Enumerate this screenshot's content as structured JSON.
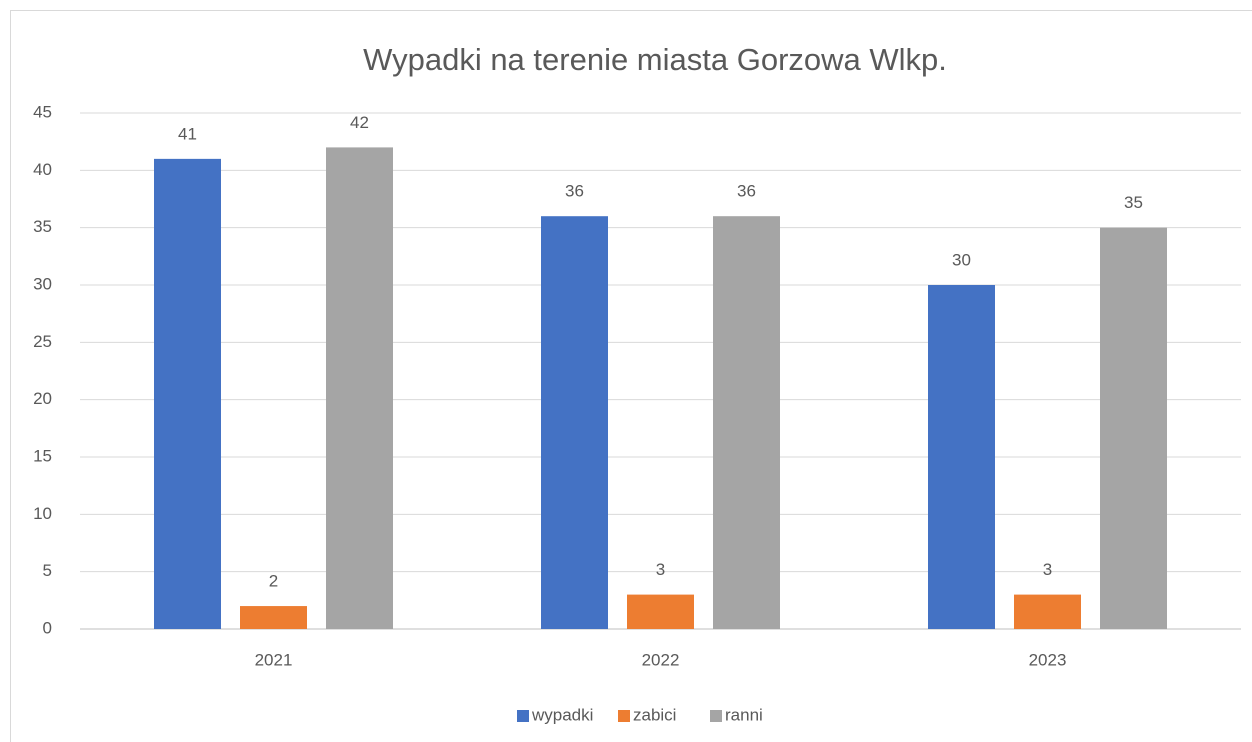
{
  "chart_data": {
    "type": "bar",
    "title": "Wypadki na terenie miasta Gorzowa Wlkp.",
    "categories": [
      "2021",
      "2022",
      "2023"
    ],
    "series": [
      {
        "name": "wypadki",
        "color": "#4472c4",
        "values": [
          41,
          36,
          30
        ]
      },
      {
        "name": "zabici",
        "color": "#ed7d31",
        "values": [
          2,
          3,
          3
        ]
      },
      {
        "name": "ranni",
        "color": "#a5a5a5",
        "values": [
          42,
          36,
          35
        ]
      }
    ],
    "ylim": [
      0,
      45
    ],
    "yticks": [
      0,
      5,
      10,
      15,
      20,
      25,
      30,
      35,
      40,
      45
    ],
    "grid": true,
    "legend": "bottom"
  }
}
